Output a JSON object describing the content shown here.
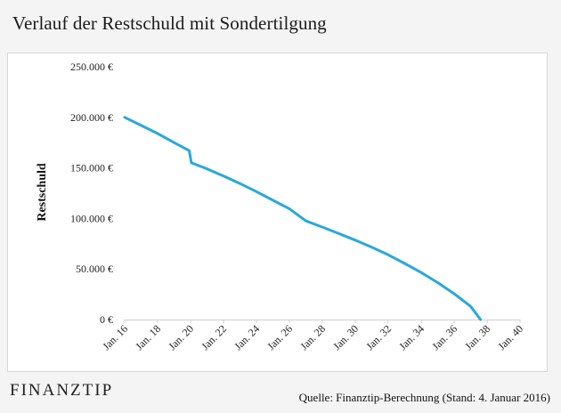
{
  "title": "Verlauf der Restschuld  mit Sondertilgung",
  "logo": {
    "left": "FINANZ",
    "right": "TIP"
  },
  "source": "Quelle: Finanztip-Berechnung (Stand: 4. Januar 2016)",
  "chart_data": {
    "type": "line",
    "ylabel": "Restschuld",
    "xlabel": "",
    "ylim": [
      0,
      250000
    ],
    "yticks": [
      0,
      50000,
      100000,
      150000,
      200000,
      250000
    ],
    "ytick_labels": [
      "0 €",
      "50.000 €",
      "100.000 €",
      "150.000 €",
      "200.000 €",
      "250.000 €"
    ],
    "xlim": [
      2016,
      2040
    ],
    "xticks": [
      2016,
      2018,
      2020,
      2022,
      2024,
      2026,
      2028,
      2030,
      2032,
      2034,
      2036,
      2038,
      2040
    ],
    "xtick_labels": [
      "Jan. 16",
      "Jan. 18",
      "Jan. 20",
      "Jan. 22",
      "Jan. 24",
      "Jan. 26",
      "Jan. 28",
      "Jan. 30",
      "Jan. 32",
      "Jan. 34",
      "Jan. 36",
      "Jan. 38",
      "Jan. 40"
    ],
    "grid": false,
    "line_color": "#2aa8dc",
    "series": [
      {
        "x": [
          2016,
          2017,
          2018,
          2019,
          2019.92,
          2020.05,
          2021,
          2022,
          2023,
          2024,
          2025,
          2026,
          2027,
          2028,
          2029,
          2030,
          2031,
          2032,
          2033,
          2034,
          2035,
          2036,
          2037,
          2037.6
        ],
        "values": [
          200000,
          192000,
          184000,
          175000,
          167000,
          155000,
          149000,
          142000,
          134500,
          126500,
          118000,
          109500,
          97500,
          91500,
          85000,
          78500,
          71500,
          64000,
          55500,
          46500,
          36500,
          25500,
          13000,
          0
        ]
      }
    ]
  }
}
